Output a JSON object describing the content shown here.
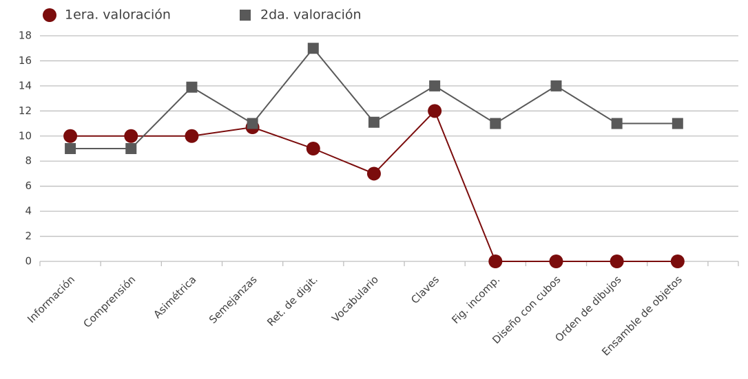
{
  "chart_data": {
    "type": "line",
    "categories": [
      "Información",
      "Comprensión",
      "Asimétrica",
      "Semejanzas",
      "Ret. de digit.",
      "Vocabulario",
      "Claves",
      "Fig. incomp.",
      "Diseño con cubos",
      "Orden de dibujos",
      "Ensamble de objetos"
    ],
    "series": [
      {
        "name": "1era. valoración",
        "color": "#7b0c0c",
        "values": [
          10,
          10,
          10,
          10.7,
          9,
          7,
          12,
          0,
          0,
          0,
          0
        ]
      },
      {
        "name": "2da. valoración",
        "color": "#595959",
        "values": [
          9,
          9,
          13.9,
          11,
          17,
          11.1,
          14,
          11,
          14,
          11,
          11
        ]
      }
    ],
    "ylim": [
      0,
      18
    ],
    "yticks": [
      0,
      2,
      4,
      6,
      8,
      10,
      12,
      14,
      16,
      18
    ],
    "grid": true,
    "legend": "top"
  }
}
